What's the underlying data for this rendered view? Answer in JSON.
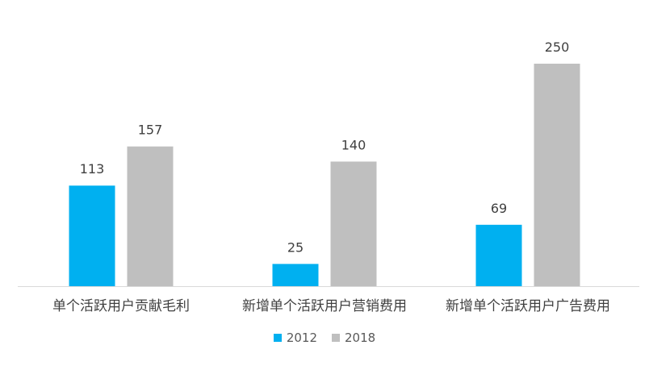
{
  "chart_data": {
    "type": "bar",
    "title": "",
    "xlabel": "",
    "ylabel": "",
    "ylim": [
      0,
      250
    ],
    "grid": false,
    "legend_position": "bottom",
    "categories": [
      "单个活跃用户贡献毛利",
      "新增单个活跃用户营销费用",
      "新增单个活跃用户广告费用"
    ],
    "series": [
      {
        "name": "2012",
        "color": "#00B0F0",
        "values": [
          113,
          25,
          69
        ]
      },
      {
        "name": "2018",
        "color": "#BFBFBF",
        "values": [
          157,
          140,
          250
        ]
      }
    ]
  }
}
